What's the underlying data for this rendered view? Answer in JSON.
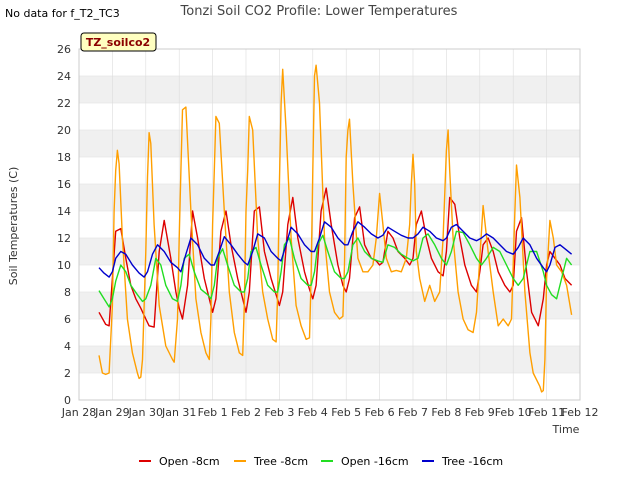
{
  "note": "No data for f_T2_TC3",
  "badge": "TZ_soilco2",
  "colors": {
    "open_8": "#dd0000",
    "tree_8": "#ff9f00",
    "open_16": "#22dd22",
    "tree_16": "#0000cc",
    "band": "#f0f0f0",
    "grid": "#dddddd",
    "badge_bg": "#ffffc0"
  },
  "chart_data": {
    "type": "line",
    "title": "Tonzi Soil CO2 Profile: Lower Temperatures",
    "xlabel": "Time",
    "ylabel": "Soil Temperatures (C)",
    "ylim": [
      0,
      26
    ],
    "yticks": [
      0,
      2,
      4,
      6,
      8,
      10,
      12,
      14,
      16,
      18,
      20,
      22,
      24,
      26
    ],
    "xlim": [
      0,
      15
    ],
    "xticks": [
      0,
      1,
      2,
      3,
      4,
      5,
      6,
      7,
      8,
      9,
      10,
      11,
      12,
      13,
      14,
      15
    ],
    "xticklabels": [
      "Jan 28",
      "Jan 29",
      "Jan 30",
      "Jan 31",
      "Feb 1",
      "Feb 2",
      "Feb 3",
      "Feb 4",
      "Feb 5",
      "Feb 6",
      "Feb 7",
      "Feb 8",
      "Feb 9",
      "Feb 10",
      "Feb 11",
      "Feb 12"
    ],
    "x_unit": "days since Jan 28",
    "grid": true,
    "legend_position": "bottom",
    "series": [
      {
        "name": "Open -8cm",
        "color": "#dd0000",
        "x": [
          0.6,
          0.8,
          0.9,
          1.0,
          1.1,
          1.25,
          1.4,
          1.55,
          1.7,
          1.85,
          2.0,
          2.1,
          2.25,
          2.4,
          2.55,
          2.75,
          2.9,
          3.0,
          3.1,
          3.25,
          3.4,
          3.55,
          3.75,
          3.9,
          4.0,
          4.1,
          4.25,
          4.4,
          4.55,
          4.75,
          4.9,
          5.0,
          5.1,
          5.25,
          5.4,
          5.55,
          5.75,
          5.9,
          6.0,
          6.1,
          6.25,
          6.4,
          6.55,
          6.75,
          6.9,
          7.0,
          7.1,
          7.25,
          7.4,
          7.55,
          7.75,
          7.9,
          8.0,
          8.1,
          8.25,
          8.4,
          8.55,
          8.75,
          8.9,
          9.0,
          9.1,
          9.25,
          9.4,
          9.55,
          9.75,
          9.9,
          10.0,
          10.1,
          10.25,
          10.4,
          10.55,
          10.75,
          10.9,
          11.0,
          11.1,
          11.25,
          11.4,
          11.55,
          11.75,
          11.9,
          12.0,
          12.1,
          12.25,
          12.4,
          12.55,
          12.75,
          12.9,
          13.0,
          13.1,
          13.25,
          13.4,
          13.55,
          13.75,
          13.9,
          14.0,
          14.1,
          14.25,
          14.4,
          14.55,
          14.75
        ],
        "values": [
          6.5,
          5.6,
          5.5,
          9.0,
          12.5,
          12.7,
          10.5,
          8.5,
          7.5,
          6.8,
          6.0,
          5.5,
          5.4,
          11.0,
          13.3,
          10.5,
          8.0,
          6.8,
          6.0,
          8.5,
          14.0,
          12.0,
          9.0,
          7.5,
          6.5,
          7.5,
          12.5,
          14.0,
          11.5,
          9.0,
          7.5,
          6.5,
          8.0,
          14.0,
          14.3,
          11.0,
          9.0,
          7.8,
          7.0,
          8.0,
          13.0,
          15.0,
          12.0,
          9.5,
          8.2,
          7.5,
          8.5,
          14.0,
          15.7,
          13.0,
          10.0,
          8.5,
          8.0,
          9.0,
          13.5,
          14.3,
          11.5,
          10.5,
          10.3,
          10.0,
          10.2,
          12.5,
          12.0,
          11.0,
          10.5,
          10.0,
          10.5,
          13.0,
          14.0,
          12.0,
          10.5,
          9.5,
          9.2,
          11.0,
          15.0,
          14.5,
          12.0,
          10.0,
          8.5,
          8.0,
          9.5,
          11.5,
          12.0,
          11.0,
          9.5,
          8.5,
          8.0,
          8.5,
          12.5,
          13.5,
          9.5,
          6.5,
          5.5,
          7.5,
          10.0,
          11.0,
          10.5,
          10.0,
          9.0,
          8.5
        ]
      },
      {
        "name": "Tree -8cm",
        "color": "#ff9f00",
        "x": [
          0.6,
          0.7,
          0.8,
          0.9,
          1.0,
          1.05,
          1.1,
          1.15,
          1.2,
          1.3,
          1.45,
          1.6,
          1.75,
          1.8,
          1.85,
          1.9,
          2.0,
          2.05,
          2.1,
          2.15,
          2.25,
          2.4,
          2.6,
          2.8,
          2.85,
          2.95,
          3.0,
          3.05,
          3.1,
          3.2,
          3.35,
          3.5,
          3.65,
          3.8,
          3.9,
          3.95,
          4.0,
          4.05,
          4.1,
          4.2,
          4.35,
          4.5,
          4.65,
          4.8,
          4.9,
          4.95,
          5.0,
          5.05,
          5.1,
          5.2,
          5.35,
          5.5,
          5.65,
          5.8,
          5.9,
          5.95,
          6.0,
          6.05,
          6.1,
          6.2,
          6.35,
          6.5,
          6.65,
          6.8,
          6.9,
          6.95,
          7.0,
          7.05,
          7.1,
          7.2,
          7.35,
          7.5,
          7.65,
          7.8,
          7.9,
          7.95,
          8.0,
          8.05,
          8.1,
          8.2,
          8.35,
          8.5,
          8.65,
          8.8,
          8.9,
          9.0,
          9.1,
          9.2,
          9.35,
          9.5,
          9.65,
          9.8,
          9.9,
          9.95,
          10.0,
          10.05,
          10.1,
          10.2,
          10.35,
          10.5,
          10.65,
          10.8,
          10.9,
          11.0,
          11.05,
          11.1,
          11.2,
          11.35,
          11.5,
          11.65,
          11.8,
          11.9,
          12.0,
          12.1,
          12.25,
          12.4,
          12.55,
          12.7,
          12.85,
          12.95,
          13.0,
          13.05,
          13.1,
          13.2,
          13.35,
          13.5,
          13.6,
          13.7,
          13.8,
          13.85,
          13.9,
          13.95,
          14.0,
          14.1,
          14.2,
          14.3,
          14.45,
          14.6,
          14.75
        ],
        "values": [
          3.3,
          2.0,
          1.9,
          2.0,
          7.0,
          14.0,
          17.0,
          18.5,
          17.5,
          12.0,
          6.0,
          3.5,
          2.0,
          1.6,
          1.7,
          3.0,
          11.0,
          16.5,
          19.8,
          19.0,
          13.0,
          7.0,
          4.0,
          3.0,
          2.8,
          6.0,
          12.0,
          17.0,
          21.5,
          21.7,
          14.0,
          7.5,
          5.0,
          3.5,
          3.0,
          6.0,
          13.0,
          17.0,
          21.0,
          20.5,
          14.0,
          8.0,
          5.0,
          3.5,
          3.3,
          7.0,
          14.0,
          17.0,
          21.0,
          20.0,
          12.0,
          8.0,
          6.0,
          4.5,
          4.3,
          8.0,
          16.0,
          22.0,
          24.5,
          20.0,
          12.0,
          7.0,
          5.5,
          4.5,
          4.6,
          9.0,
          17.0,
          24.0,
          24.8,
          22.0,
          12.0,
          8.0,
          6.5,
          6.0,
          6.2,
          10.0,
          18.0,
          20.0,
          20.8,
          16.0,
          10.5,
          9.5,
          9.5,
          10.0,
          12.0,
          15.3,
          13.0,
          10.5,
          9.5,
          9.6,
          9.5,
          10.5,
          13.0,
          16.0,
          18.2,
          16.0,
          11.0,
          9.0,
          7.3,
          8.5,
          7.3,
          8.0,
          12.0,
          18.5,
          20.0,
          17.0,
          12.0,
          8.0,
          6.0,
          5.2,
          5.0,
          6.5,
          10.5,
          14.4,
          11.0,
          8.0,
          5.5,
          6.0,
          5.5,
          6.0,
          10.0,
          14.0,
          17.4,
          15.0,
          8.0,
          3.5,
          2.0,
          1.5,
          1.0,
          0.6,
          0.7,
          3.0,
          9.0,
          13.3,
          12.0,
          10.0,
          9.5,
          8.5,
          6.3
        ]
      },
      {
        "name": "Open -16cm",
        "color": "#22dd22",
        "x": [
          0.6,
          0.75,
          0.9,
          1.0,
          1.1,
          1.25,
          1.4,
          1.55,
          1.75,
          1.9,
          2.0,
          2.15,
          2.3,
          2.45,
          2.6,
          2.8,
          2.95,
          3.05,
          3.15,
          3.3,
          3.45,
          3.65,
          3.85,
          3.95,
          4.05,
          4.15,
          4.3,
          4.45,
          4.65,
          4.85,
          4.95,
          5.05,
          5.15,
          5.3,
          5.45,
          5.65,
          5.85,
          5.95,
          6.05,
          6.15,
          6.3,
          6.45,
          6.65,
          6.85,
          6.95,
          7.05,
          7.15,
          7.3,
          7.45,
          7.65,
          7.85,
          7.95,
          8.05,
          8.2,
          8.35,
          8.55,
          8.75,
          8.95,
          9.1,
          9.25,
          9.45,
          9.65,
          9.85,
          10.0,
          10.15,
          10.3,
          10.45,
          10.65,
          10.85,
          11.0,
          11.15,
          11.3,
          11.5,
          11.7,
          11.9,
          12.05,
          12.2,
          12.4,
          12.6,
          12.8,
          13.0,
          13.15,
          13.3,
          13.5,
          13.7,
          13.9,
          14.0,
          14.15,
          14.3,
          14.45,
          14.6,
          14.75
        ],
        "values": [
          8.1,
          7.5,
          6.9,
          7.5,
          8.8,
          10.0,
          9.5,
          8.5,
          7.8,
          7.3,
          7.5,
          8.5,
          10.5,
          10.0,
          8.5,
          7.5,
          7.3,
          8.5,
          10.5,
          10.8,
          9.5,
          8.2,
          7.8,
          7.5,
          8.5,
          10.5,
          11.2,
          10.0,
          8.5,
          8.0,
          8.0,
          9.0,
          11.0,
          11.3,
          10.0,
          8.5,
          8.0,
          8.0,
          9.5,
          11.5,
          12.0,
          10.5,
          9.0,
          8.5,
          8.5,
          9.5,
          11.5,
          12.2,
          11.0,
          9.5,
          9.0,
          9.0,
          9.5,
          11.5,
          12.0,
          11.0,
          10.5,
          10.3,
          10.2,
          11.5,
          11.3,
          10.8,
          10.5,
          10.3,
          10.5,
          12.0,
          12.3,
          11.5,
          10.5,
          10.0,
          11.0,
          12.5,
          12.4,
          11.5,
          10.5,
          10.0,
          10.5,
          11.3,
          11.0,
          10.0,
          9.0,
          8.5,
          9.0,
          11.0,
          11.0,
          9.5,
          8.5,
          7.8,
          7.5,
          9.0,
          10.5,
          10.0
        ]
      },
      {
        "name": "Tree -16cm",
        "color": "#0000cc",
        "x": [
          0.6,
          0.75,
          0.9,
          1.0,
          1.1,
          1.25,
          1.4,
          1.6,
          1.8,
          1.95,
          2.05,
          2.2,
          2.35,
          2.55,
          2.75,
          2.95,
          3.05,
          3.2,
          3.35,
          3.55,
          3.75,
          3.95,
          4.05,
          4.2,
          4.35,
          4.55,
          4.75,
          4.95,
          5.05,
          5.2,
          5.35,
          5.55,
          5.75,
          5.95,
          6.05,
          6.2,
          6.35,
          6.55,
          6.75,
          6.95,
          7.05,
          7.2,
          7.35,
          7.55,
          7.75,
          7.95,
          8.05,
          8.2,
          8.35,
          8.55,
          8.75,
          8.95,
          9.1,
          9.25,
          9.45,
          9.65,
          9.85,
          10.0,
          10.15,
          10.3,
          10.5,
          10.7,
          10.9,
          11.0,
          11.15,
          11.3,
          11.5,
          11.7,
          11.9,
          12.05,
          12.2,
          12.4,
          12.6,
          12.8,
          13.0,
          13.15,
          13.3,
          13.5,
          13.7,
          13.9,
          14.0,
          14.1,
          14.25,
          14.4,
          14.55,
          14.75
        ],
        "values": [
          9.8,
          9.4,
          9.1,
          9.5,
          10.5,
          11.0,
          10.8,
          10.0,
          9.4,
          9.1,
          9.5,
          10.8,
          11.5,
          11.0,
          10.2,
          9.8,
          9.5,
          10.8,
          12.0,
          11.5,
          10.5,
          10.0,
          10.0,
          11.0,
          12.1,
          11.5,
          10.8,
          10.2,
          10.0,
          11.0,
          12.3,
          12.0,
          11.0,
          10.5,
          10.3,
          11.5,
          12.8,
          12.3,
          11.5,
          11.0,
          11.0,
          12.0,
          13.2,
          12.8,
          12.0,
          11.5,
          11.5,
          12.5,
          13.2,
          12.8,
          12.3,
          12.0,
          12.2,
          12.8,
          12.5,
          12.2,
          12.0,
          12.0,
          12.3,
          12.8,
          12.5,
          12.0,
          11.8,
          12.0,
          12.8,
          13.0,
          12.5,
          12.0,
          11.8,
          12.0,
          12.3,
          12.0,
          11.5,
          11.0,
          10.8,
          11.3,
          12.0,
          11.5,
          10.5,
          9.8,
          9.5,
          10.0,
          11.3,
          11.5,
          11.2,
          10.8
        ]
      }
    ]
  }
}
